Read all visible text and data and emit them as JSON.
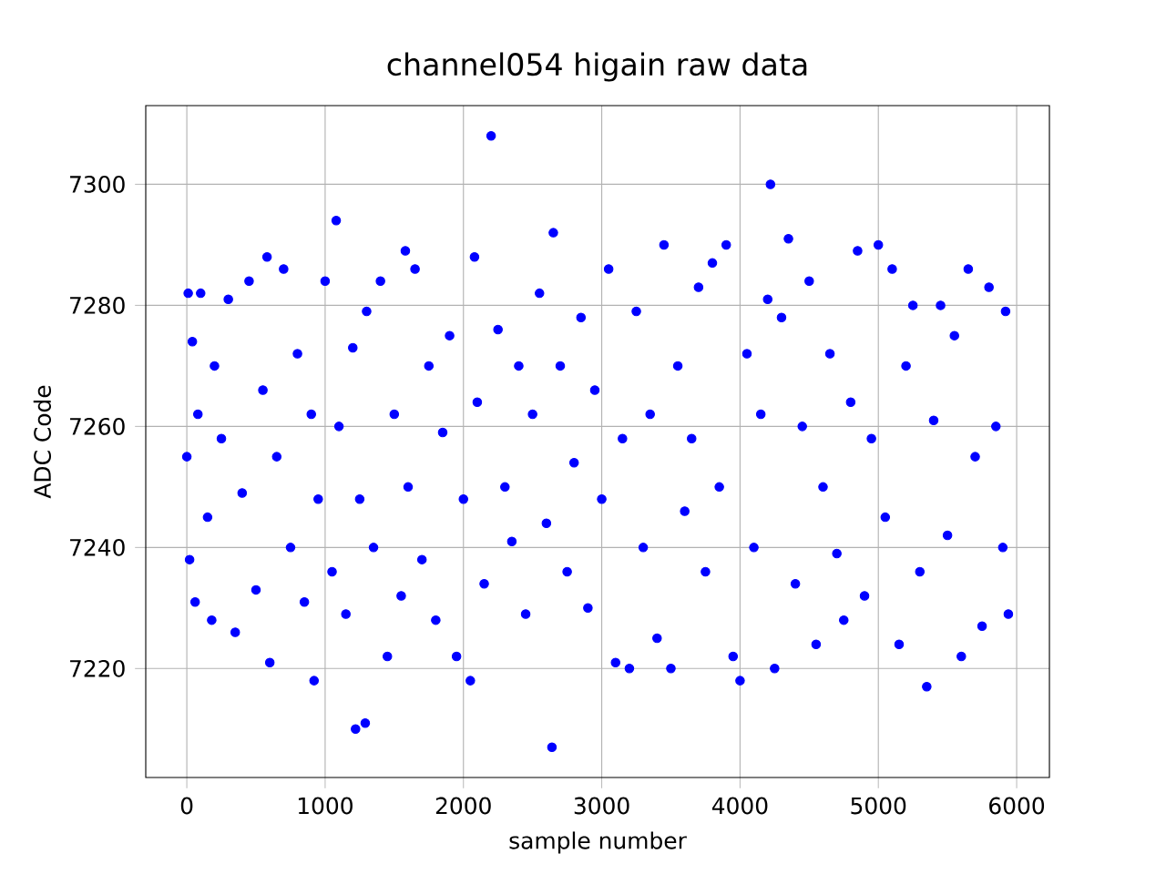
{
  "chart_data": {
    "type": "scatter",
    "title": "channel054 higain raw data",
    "xlabel": "sample number",
    "ylabel": "ADC Code",
    "xlim": [
      -297,
      6237
    ],
    "ylim": [
      7202,
      7313
    ],
    "xticks": [
      0,
      1000,
      2000,
      3000,
      4000,
      5000,
      6000
    ],
    "yticks": [
      7220,
      7240,
      7260,
      7280,
      7300
    ],
    "grid": true,
    "series": [
      {
        "color": "#0000ff",
        "x": [
          0,
          10,
          20,
          40,
          60,
          80,
          100,
          150,
          180,
          200,
          250,
          300,
          350,
          400,
          450,
          500,
          550,
          580,
          600,
          650,
          700,
          750,
          800,
          850,
          900,
          920,
          950,
          1000,
          1050,
          1080,
          1100,
          1150,
          1200,
          1220,
          1250,
          1290,
          1300,
          1350,
          1400,
          1450,
          1500,
          1550,
          1580,
          1600,
          1650,
          1700,
          1750,
          1800,
          1850,
          1900,
          1950,
          2000,
          2050,
          2080,
          2100,
          2150,
          2200,
          2250,
          2300,
          2350,
          2400,
          2450,
          2500,
          2550,
          2600,
          2640,
          2650,
          2700,
          2750,
          2800,
          2850,
          2900,
          2950,
          3000,
          3050,
          3100,
          3150,
          3200,
          3250,
          3300,
          3350,
          3400,
          3450,
          3500,
          3550,
          3600,
          3650,
          3700,
          3750,
          3800,
          3850,
          3900,
          3950,
          4000,
          4050,
          4100,
          4150,
          4200,
          4220,
          4250,
          4300,
          4350,
          4400,
          4450,
          4500,
          4550,
          4600,
          4650,
          4700,
          4750,
          4800,
          4850,
          4900,
          4950,
          5000,
          5050,
          5100,
          5150,
          5200,
          5250,
          5300,
          5350,
          5400,
          5450,
          5500,
          5550,
          5600,
          5650,
          5700,
          5750,
          5800,
          5850,
          5900,
          5920,
          5940
        ],
        "values": [
          7255,
          7282,
          7238,
          7274,
          7231,
          7262,
          7282,
          7245,
          7228,
          7270,
          7258,
          7281,
          7226,
          7249,
          7284,
          7233,
          7266,
          7288,
          7221,
          7255,
          7286,
          7240,
          7272,
          7231,
          7262,
          7218,
          7248,
          7284,
          7236,
          7294,
          7260,
          7229,
          7273,
          7210,
          7248,
          7211,
          7279,
          7240,
          7284,
          7222,
          7262,
          7232,
          7289,
          7250,
          7286,
          7238,
          7270,
          7228,
          7259,
          7275,
          7222,
          7248,
          7218,
          7288,
          7264,
          7234,
          7308,
          7276,
          7250,
          7241,
          7270,
          7229,
          7262,
          7282,
          7244,
          7207,
          7292,
          7270,
          7236,
          7254,
          7278,
          7230,
          7266,
          7248,
          7286,
          7221,
          7258,
          7220,
          7279,
          7240,
          7262,
          7225,
          7290,
          7220,
          7270,
          7246,
          7258,
          7283,
          7236,
          7287,
          7250,
          7290,
          7222,
          7218,
          7272,
          7240,
          7262,
          7281,
          7300,
          7220,
          7278,
          7291,
          7234,
          7260,
          7284,
          7224,
          7250,
          7272,
          7239,
          7228,
          7264,
          7289,
          7232,
          7258,
          7290,
          7245,
          7286,
          7224,
          7270,
          7280,
          7236,
          7217,
          7261,
          7280,
          7242,
          7275,
          7222,
          7286,
          7255,
          7227,
          7283,
          7260,
          7240,
          7279,
          7229
        ]
      }
    ]
  }
}
